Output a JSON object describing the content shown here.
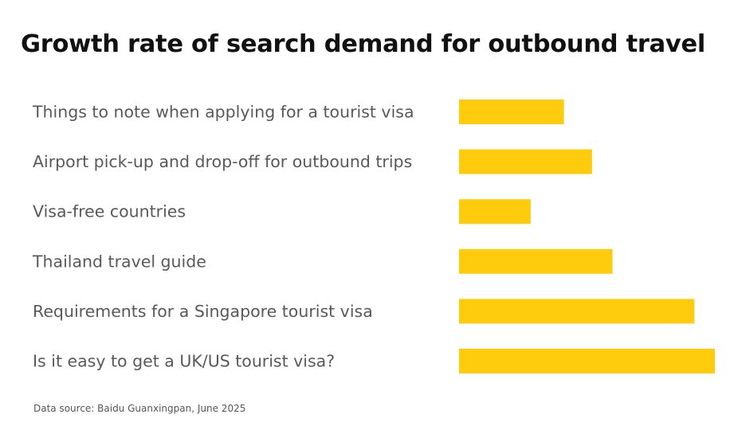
{
  "chart_data": {
    "type": "bar",
    "orientation": "horizontal",
    "title": "Growth rate of search demand for outbound travel",
    "categories": [
      "Things to note when applying for a tourist visa",
      "Airport pick-up and drop-off for outbound trips",
      "Visa-free countries",
      "Thailand travel guide",
      "Requirements for a Singapore tourist visa",
      "Is it easy to get a UK/US tourist visa?"
    ],
    "values": [
      41,
      52,
      28,
      60,
      92,
      100
    ],
    "xlim": [
      0,
      100
    ],
    "bar_color": "#FFCC0D",
    "grid": false,
    "legend": "none",
    "source": "Data source: Baidu Guanxingpan, June 2025"
  }
}
